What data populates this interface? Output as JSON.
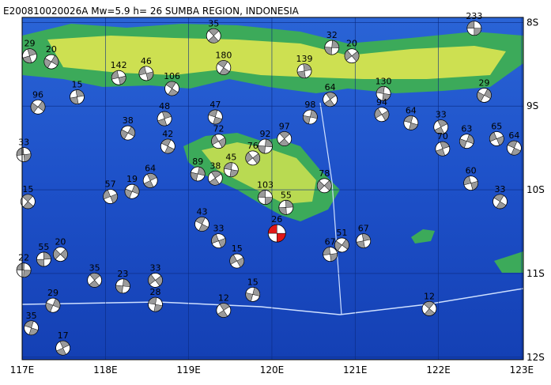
{
  "title": "E200810020026A Mw=5.9 h= 26 SUMBA REGION, INDONESIA",
  "map": {
    "lon_range": [
      117,
      123.02
    ],
    "lat_range": [
      -7.94,
      -12.03
    ],
    "lon_ticks": [
      {
        "value": 117,
        "label": "117E"
      },
      {
        "value": 118,
        "label": "118E"
      },
      {
        "value": 119,
        "label": "119E"
      },
      {
        "value": 120,
        "label": "120E"
      },
      {
        "value": 121,
        "label": "121E"
      },
      {
        "value": 122,
        "label": "122E"
      },
      {
        "value": 123,
        "label": "123E"
      }
    ],
    "lat_ticks": [
      {
        "value": -8,
        "label": "8S"
      },
      {
        "value": -9,
        "label": "9S"
      },
      {
        "value": -10,
        "label": "10S"
      },
      {
        "value": -11,
        "label": "11S"
      },
      {
        "value": -12,
        "label": "12S"
      }
    ],
    "highlight_color": "#e01818",
    "event_color": "#9a9a9a"
  },
  "main_event": {
    "lon": 120.06,
    "lat": -10.52,
    "depth": 26
  },
  "events": [
    {
      "lon": 122.43,
      "lat": -8.07,
      "depth": 233
    },
    {
      "lon": 119.3,
      "lat": -8.16,
      "depth": 35
    },
    {
      "lon": 120.72,
      "lat": -8.3,
      "depth": 32
    },
    {
      "lon": 120.96,
      "lat": -8.4,
      "depth": 20
    },
    {
      "lon": 121.34,
      "lat": -8.85,
      "depth": 130
    },
    {
      "lon": 120.7,
      "lat": -8.92,
      "depth": 64
    },
    {
      "lon": 120.46,
      "lat": -9.13,
      "depth": 98
    },
    {
      "lon": 121.32,
      "lat": -9.1,
      "depth": 94
    },
    {
      "lon": 121.67,
      "lat": -9.2,
      "depth": 64
    },
    {
      "lon": 122.03,
      "lat": -9.25,
      "depth": 33
    },
    {
      "lon": 122.34,
      "lat": -9.42,
      "depth": 63
    },
    {
      "lon": 122.7,
      "lat": -9.39,
      "depth": 65
    },
    {
      "lon": 122.91,
      "lat": -9.5,
      "depth": 64
    },
    {
      "lon": 122.05,
      "lat": -9.51,
      "depth": 70
    },
    {
      "lon": 122.55,
      "lat": -8.87,
      "depth": 29
    },
    {
      "lon": 122.39,
      "lat": -9.92,
      "depth": 60
    },
    {
      "lon": 122.74,
      "lat": -10.14,
      "depth": 33
    },
    {
      "lon": 121.1,
      "lat": -10.61,
      "depth": 67
    },
    {
      "lon": 120.84,
      "lat": -10.66,
      "depth": 51
    },
    {
      "lon": 120.7,
      "lat": -10.77,
      "depth": 67
    },
    {
      "lon": 121.89,
      "lat": -11.42,
      "depth": 12
    },
    {
      "lon": 120.17,
      "lat": -10.21,
      "depth": 55
    },
    {
      "lon": 120.63,
      "lat": -9.95,
      "depth": 78
    },
    {
      "lon": 119.92,
      "lat": -10.09,
      "depth": 103
    },
    {
      "lon": 120.15,
      "lat": -9.39,
      "depth": 97
    },
    {
      "lon": 119.92,
      "lat": -9.48,
      "depth": 92
    },
    {
      "lon": 119.77,
      "lat": -9.62,
      "depth": 76
    },
    {
      "lon": 119.51,
      "lat": -9.76,
      "depth": 45
    },
    {
      "lon": 119.32,
      "lat": -9.86,
      "depth": 38
    },
    {
      "lon": 119.11,
      "lat": -9.81,
      "depth": 89
    },
    {
      "lon": 119.36,
      "lat": -9.42,
      "depth": 72
    },
    {
      "lon": 119.32,
      "lat": -9.13,
      "depth": 47
    },
    {
      "lon": 118.54,
      "lat": -9.89,
      "depth": 64
    },
    {
      "lon": 118.32,
      "lat": -10.02,
      "depth": 19
    },
    {
      "lon": 118.06,
      "lat": -10.08,
      "depth": 57
    },
    {
      "lon": 118.75,
      "lat": -9.48,
      "depth": 42
    },
    {
      "lon": 118.71,
      "lat": -9.15,
      "depth": 48
    },
    {
      "lon": 118.27,
      "lat": -9.32,
      "depth": 38
    },
    {
      "lon": 118.49,
      "lat": -8.61,
      "depth": 46
    },
    {
      "lon": 118.8,
      "lat": -8.79,
      "depth": 106
    },
    {
      "lon": 117.66,
      "lat": -8.89,
      "depth": 15
    },
    {
      "lon": 117.19,
      "lat": -9.01,
      "depth": 96
    },
    {
      "lon": 117.02,
      "lat": -9.58,
      "depth": 33
    },
    {
      "lon": 117.07,
      "lat": -10.14,
      "depth": 15
    },
    {
      "lon": 117.26,
      "lat": -10.83,
      "depth": 55
    },
    {
      "lon": 117.46,
      "lat": -10.77,
      "depth": 20
    },
    {
      "lon": 117.02,
      "lat": -10.96,
      "depth": 22
    },
    {
      "lon": 117.87,
      "lat": -11.08,
      "depth": 35
    },
    {
      "lon": 118.21,
      "lat": -11.15,
      "depth": 23
    },
    {
      "lon": 118.6,
      "lat": -11.08,
      "depth": 33
    },
    {
      "lon": 118.6,
      "lat": -11.37,
      "depth": 28
    },
    {
      "lon": 119.42,
      "lat": -11.44,
      "depth": 12
    },
    {
      "lon": 119.77,
      "lat": -11.25,
      "depth": 15
    },
    {
      "lon": 119.58,
      "lat": -10.85,
      "depth": 15
    },
    {
      "lon": 117.11,
      "lat": -11.65,
      "depth": 35
    },
    {
      "lon": 117.49,
      "lat": -11.89,
      "depth": 17
    },
    {
      "lon": 117.37,
      "lat": -11.38,
      "depth": 29
    },
    {
      "lon": 119.36,
      "lat": -10.61,
      "depth": 33
    },
    {
      "lon": 119.16,
      "lat": -10.41,
      "depth": 43
    },
    {
      "lon": 117.09,
      "lat": -8.4,
      "depth": 29
    },
    {
      "lon": 117.35,
      "lat": -8.47,
      "depth": 20
    },
    {
      "lon": 118.16,
      "lat": -8.66,
      "depth": 142
    },
    {
      "lon": 119.42,
      "lat": -8.54,
      "depth": 180
    },
    {
      "lon": 120.39,
      "lat": -8.58,
      "depth": 139
    }
  ]
}
